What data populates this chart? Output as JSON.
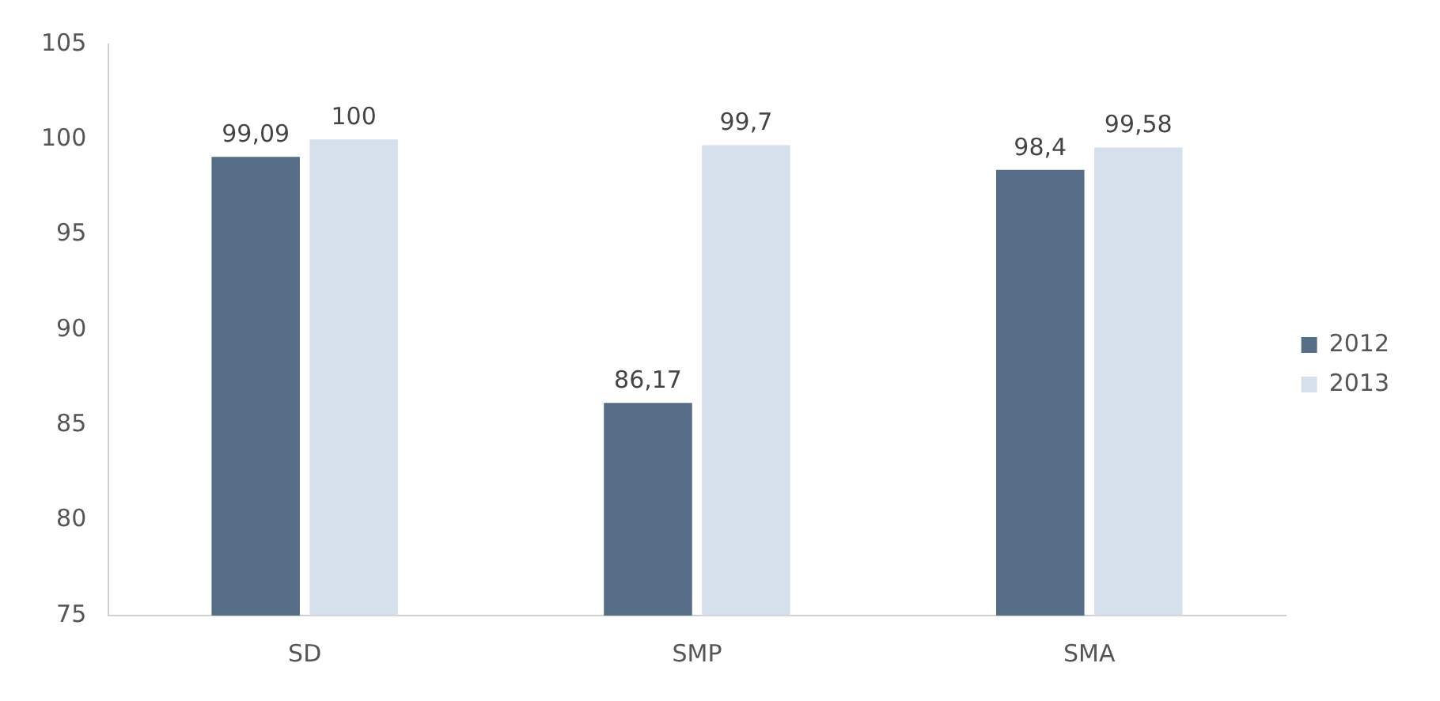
{
  "chart_data": {
    "type": "bar",
    "categories": [
      "SD",
      "SMP",
      "SMA"
    ],
    "series": [
      {
        "name": "2012",
        "color": "#566d88",
        "values": [
          99.09,
          86.17,
          98.4
        ],
        "value_labels": [
          "99,09",
          "86,17",
          "98,4"
        ]
      },
      {
        "name": "2013",
        "color": "#d5e0ec",
        "values": [
          100,
          99.7,
          99.58
        ],
        "value_labels": [
          "100",
          "99,7",
          "99,58"
        ]
      }
    ],
    "ylim": [
      75,
      105
    ],
    "yticks": [
      75,
      80,
      85,
      90,
      95,
      100,
      105
    ],
    "grid": false,
    "legend": "right"
  }
}
